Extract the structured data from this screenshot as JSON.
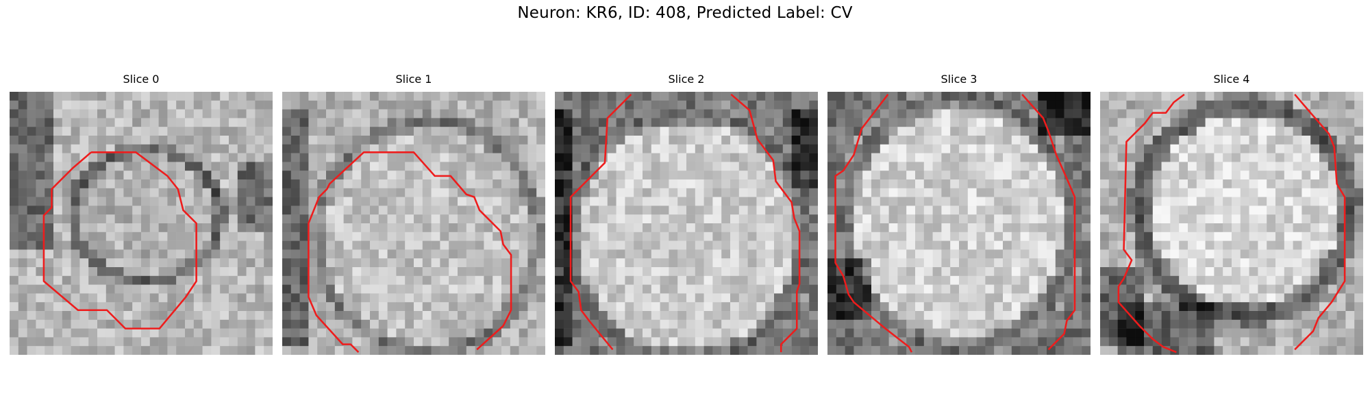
{
  "figure": {
    "title": "Neuron: KR6, ID: 408, Predicted Label: CV",
    "contour_color": "#ee1c1c",
    "panels": [
      {
        "title": "Slice 0"
      },
      {
        "title": "Slice 1"
      },
      {
        "title": "Slice 2"
      },
      {
        "title": "Slice 3"
      },
      {
        "title": "Slice 4"
      }
    ]
  }
}
